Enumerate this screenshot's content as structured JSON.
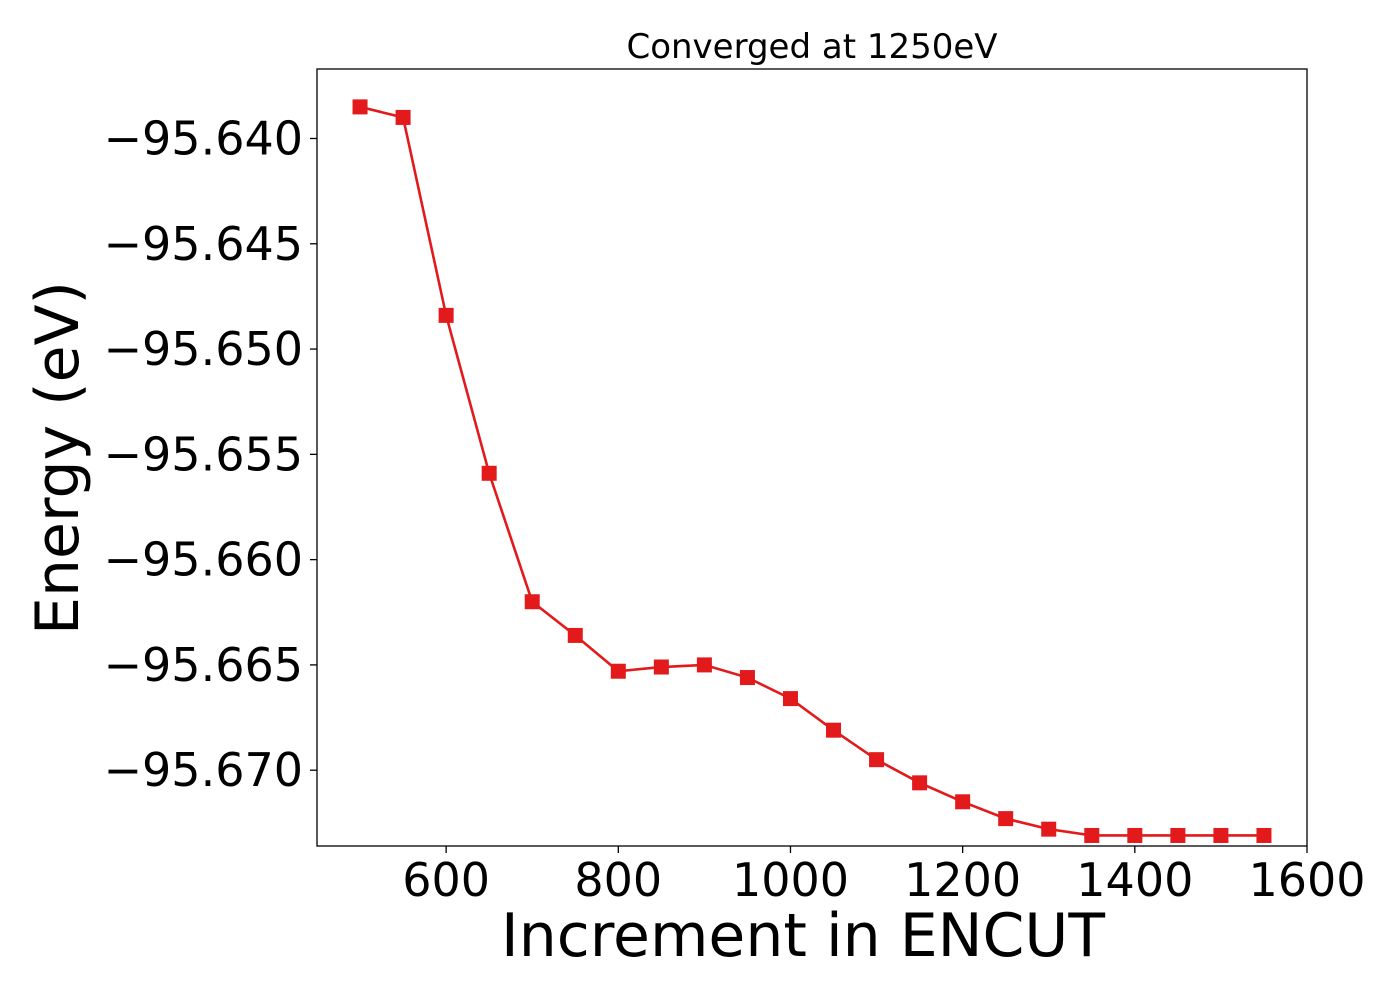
{
  "chart_data": {
    "type": "line",
    "title": "Converged at 1250eV",
    "xlabel": "Increment in ENCUT",
    "ylabel": "Energy (eV)",
    "xlim": [
      450,
      1600
    ],
    "ylim": [
      -95.6736,
      -95.6367
    ],
    "xticks": [
      600,
      800,
      1000,
      1200,
      1400,
      1600
    ],
    "xtick_labels": [
      "600",
      "800",
      "1000",
      "1200",
      "1400",
      "1600"
    ],
    "yticks": [
      -95.64,
      -95.645,
      -95.65,
      -95.655,
      -95.66,
      -95.665,
      -95.67
    ],
    "ytick_labels": [
      "−95.640",
      "−95.645",
      "−95.650",
      "−95.655",
      "−95.660",
      "−95.665",
      "−95.670"
    ],
    "grid": false,
    "color": "#e31a1c",
    "marker": "square",
    "series": [
      {
        "x": [
          500,
          550,
          600,
          650,
          700,
          750,
          800,
          850,
          900,
          950,
          1000,
          1050,
          1100,
          1150,
          1200,
          1250,
          1300,
          1350,
          1400,
          1450,
          1500,
          1550
        ],
        "values": [
          -95.6385,
          -95.639,
          -95.6484,
          -95.6559,
          -95.662,
          -95.6636,
          -95.6653,
          -95.6651,
          -95.665,
          -95.6656,
          -95.6666,
          -95.6681,
          -95.6695,
          -95.6706,
          -95.6715,
          -95.6723,
          -95.6728,
          -95.6731,
          -95.6731,
          -95.6731,
          -95.6731,
          -95.6731
        ]
      }
    ]
  }
}
